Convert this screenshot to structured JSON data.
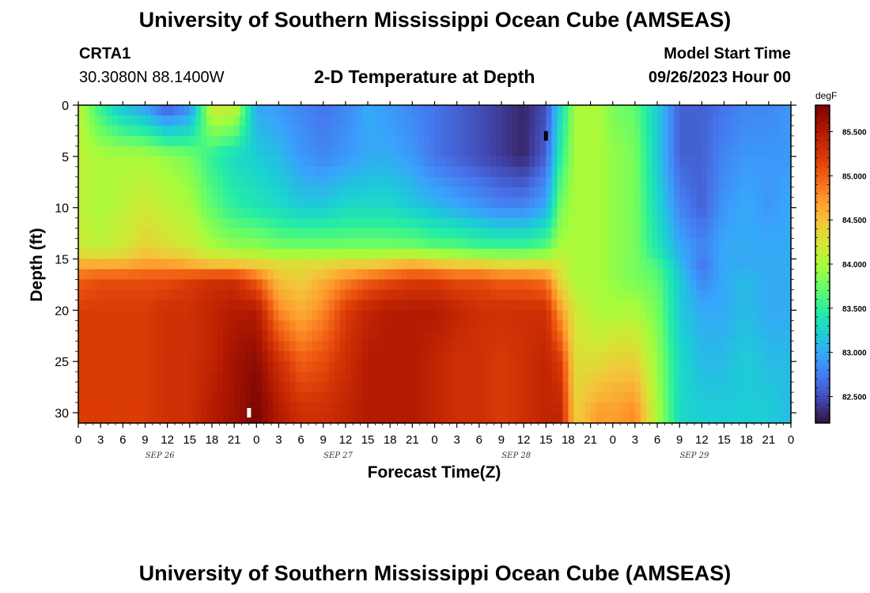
{
  "page": {
    "title": "University of Southern Mississippi Ocean Cube (AMSEAS)",
    "title_repeat": "University of Southern Mississippi Ocean Cube (AMSEAS)",
    "station": "CRTA1",
    "coords": "30.3080N  88.1400W",
    "subtitle": "2-D Temperature at Depth",
    "model_start_label": "Model Start Time",
    "model_start_value": "09/26/2023 Hour 00"
  },
  "chart_data": {
    "type": "heatmap",
    "xlabel": "Forecast Time(Z)",
    "ylabel": "Depth (ft)",
    "unit_label": "degF",
    "x_hours": [
      0,
      3,
      6,
      9,
      12,
      15,
      18,
      21,
      24,
      27,
      30,
      33,
      36,
      39,
      42,
      45,
      48,
      51,
      54,
      57,
      60,
      63,
      66,
      69,
      72,
      75,
      78,
      81,
      84,
      87,
      90,
      93,
      96
    ],
    "x_tick_labels": [
      "0",
      "3",
      "6",
      "9",
      "12",
      "15",
      "18",
      "21",
      "0",
      "3",
      "6",
      "9",
      "12",
      "15",
      "18",
      "21",
      "0",
      "3",
      "6",
      "9",
      "12",
      "15",
      "18",
      "21",
      "0",
      "3",
      "6",
      "9",
      "12",
      "15",
      "18",
      "21",
      "0"
    ],
    "date_labels": [
      {
        "label": "SEP 26",
        "hour": 11
      },
      {
        "label": "SEP 27",
        "hour": 35
      },
      {
        "label": "SEP 28",
        "hour": 59
      },
      {
        "label": "SEP 29",
        "hour": 83
      }
    ],
    "xlim": [
      0,
      96
    ],
    "ylim": [
      0,
      31
    ],
    "y_ticks": [
      0,
      5,
      10,
      15,
      20,
      25,
      30
    ],
    "y_tick_labels": [
      "0",
      "5",
      "10",
      "15",
      "20",
      "25",
      "30"
    ],
    "colorbar": {
      "min": 82.2,
      "max": 85.8,
      "ticks": [
        82.5,
        83.0,
        83.5,
        84.0,
        84.5,
        85.0,
        85.5
      ],
      "tick_labels": [
        "82.500",
        "83.000",
        "83.500",
        "84.000",
        "84.500",
        "85.000",
        "85.500"
      ]
    },
    "depths_ft": [
      0,
      5,
      10,
      14,
      15.5,
      17,
      20,
      25,
      30,
      31
    ],
    "temperature_grid": [
      {
        "hour": 0,
        "t": [
          84.1,
          84.1,
          84.1,
          84.2,
          84.6,
          85.0,
          85.2,
          85.2,
          85.2,
          85.2
        ]
      },
      {
        "hour": 3,
        "t": [
          83.5,
          84.0,
          84.0,
          84.1,
          84.6,
          85.1,
          85.2,
          85.2,
          85.2,
          85.2
        ]
      },
      {
        "hour": 6,
        "t": [
          83.1,
          84.0,
          84.1,
          84.2,
          84.6,
          85.1,
          85.2,
          85.2,
          85.2,
          85.2
        ]
      },
      {
        "hour": 9,
        "t": [
          82.9,
          84.0,
          84.2,
          84.4,
          84.7,
          85.1,
          85.2,
          85.2,
          85.2,
          85.2
        ]
      },
      {
        "hour": 12,
        "t": [
          82.5,
          83.9,
          84.1,
          84.3,
          84.7,
          85.1,
          85.3,
          85.3,
          85.3,
          85.3
        ]
      },
      {
        "hour": 15,
        "t": [
          82.8,
          83.8,
          84.0,
          84.2,
          84.6,
          85.2,
          85.3,
          85.3,
          85.3,
          85.3
        ]
      },
      {
        "hour": 18,
        "t": [
          84.2,
          83.5,
          83.7,
          84.0,
          84.5,
          85.3,
          85.4,
          85.4,
          85.5,
          85.5
        ]
      },
      {
        "hour": 21,
        "t": [
          84.2,
          83.3,
          83.5,
          83.9,
          84.5,
          85.3,
          85.5,
          85.6,
          85.6,
          85.6
        ]
      },
      {
        "hour": 24,
        "t": [
          83.0,
          83.2,
          83.4,
          83.9,
          84.4,
          85.0,
          85.5,
          85.7,
          85.8,
          85.8
        ]
      },
      {
        "hour": 27,
        "t": [
          82.9,
          83.1,
          83.3,
          83.8,
          84.3,
          84.5,
          84.8,
          85.3,
          85.5,
          85.5
        ]
      },
      {
        "hour": 30,
        "t": [
          82.8,
          82.9,
          83.2,
          83.8,
          84.3,
          84.4,
          84.6,
          85.0,
          85.3,
          85.3
        ]
      },
      {
        "hour": 33,
        "t": [
          82.7,
          82.8,
          83.2,
          83.8,
          84.3,
          84.6,
          84.8,
          85.1,
          85.3,
          85.3
        ]
      },
      {
        "hour": 36,
        "t": [
          82.8,
          82.9,
          83.3,
          83.8,
          84.4,
          84.8,
          85.2,
          85.3,
          85.4,
          85.4
        ]
      },
      {
        "hour": 39,
        "t": [
          83.0,
          83.0,
          83.3,
          83.8,
          84.4,
          85.0,
          85.4,
          85.5,
          85.5,
          85.5
        ]
      },
      {
        "hour": 42,
        "t": [
          82.9,
          83.0,
          83.3,
          83.8,
          84.5,
          85.1,
          85.5,
          85.5,
          85.5,
          85.5
        ]
      },
      {
        "hour": 45,
        "t": [
          82.8,
          82.9,
          83.2,
          83.8,
          84.6,
          85.2,
          85.5,
          85.5,
          85.5,
          85.5
        ]
      },
      {
        "hour": 48,
        "t": [
          82.7,
          82.7,
          83.1,
          83.7,
          84.5,
          85.2,
          85.5,
          85.4,
          85.4,
          85.4
        ]
      },
      {
        "hour": 51,
        "t": [
          82.6,
          82.6,
          83.0,
          83.7,
          84.4,
          85.1,
          85.4,
          85.3,
          85.3,
          85.3
        ]
      },
      {
        "hour": 54,
        "t": [
          82.5,
          82.5,
          82.9,
          83.6,
          84.4,
          85.1,
          85.3,
          85.3,
          85.3,
          85.3
        ]
      },
      {
        "hour": 57,
        "t": [
          82.4,
          82.4,
          82.8,
          83.6,
          84.3,
          85.0,
          85.3,
          85.2,
          85.2,
          85.2
        ]
      },
      {
        "hour": 60,
        "t": [
          82.3,
          82.3,
          82.8,
          83.6,
          84.3,
          85.0,
          85.3,
          85.3,
          85.3,
          85.3
        ]
      },
      {
        "hour": 63,
        "t": [
          82.5,
          82.6,
          83.0,
          83.7,
          84.3,
          84.9,
          85.3,
          85.4,
          85.4,
          85.4
        ]
      },
      {
        "hour": 65,
        "t": [
          83.3,
          83.5,
          83.8,
          84.0,
          84.2,
          84.3,
          84.7,
          85.2,
          85.4,
          85.4
        ]
      },
      {
        "hour": 67,
        "t": [
          84.0,
          84.0,
          84.0,
          84.0,
          84.0,
          84.0,
          84.2,
          84.3,
          84.4,
          84.4
        ]
      },
      {
        "hour": 70,
        "t": [
          84.0,
          84.0,
          84.0,
          84.0,
          84.0,
          84.0,
          84.0,
          84.3,
          84.7,
          84.7
        ]
      },
      {
        "hour": 72,
        "t": [
          83.8,
          83.9,
          83.9,
          83.9,
          83.9,
          83.9,
          84.0,
          84.4,
          84.7,
          84.7
        ]
      },
      {
        "hour": 75,
        "t": [
          83.7,
          83.8,
          83.8,
          83.8,
          83.8,
          83.8,
          84.0,
          84.4,
          84.8,
          84.8
        ]
      },
      {
        "hour": 78,
        "t": [
          83.2,
          83.2,
          83.3,
          83.4,
          83.6,
          83.7,
          83.8,
          83.9,
          84.0,
          84.0
        ]
      },
      {
        "hour": 81,
        "t": [
          82.6,
          82.6,
          82.8,
          83.0,
          83.1,
          83.2,
          83.2,
          83.3,
          83.3,
          83.3
        ]
      },
      {
        "hour": 84,
        "t": [
          82.6,
          82.6,
          82.6,
          82.8,
          82.7,
          82.8,
          83.0,
          83.1,
          83.2,
          83.2
        ]
      },
      {
        "hour": 87,
        "t": [
          82.7,
          82.8,
          82.9,
          83.0,
          83.0,
          83.0,
          83.0,
          83.1,
          83.2,
          83.2
        ]
      },
      {
        "hour": 90,
        "t": [
          82.8,
          82.9,
          83.0,
          83.0,
          83.0,
          83.1,
          83.1,
          83.2,
          83.2,
          83.2
        ]
      },
      {
        "hour": 93,
        "t": [
          82.8,
          82.9,
          82.9,
          83.0,
          83.0,
          83.0,
          83.0,
          83.1,
          83.2,
          83.2
        ]
      },
      {
        "hour": 96,
        "t": [
          82.9,
          82.9,
          83.0,
          83.0,
          83.0,
          83.0,
          83.0,
          83.1,
          83.1,
          83.1
        ]
      }
    ],
    "markers": [
      {
        "hour": 23,
        "depth_ft": 30,
        "color": "#ffffff"
      },
      {
        "hour": 63,
        "depth_ft": 3,
        "color": "#000000"
      }
    ]
  }
}
